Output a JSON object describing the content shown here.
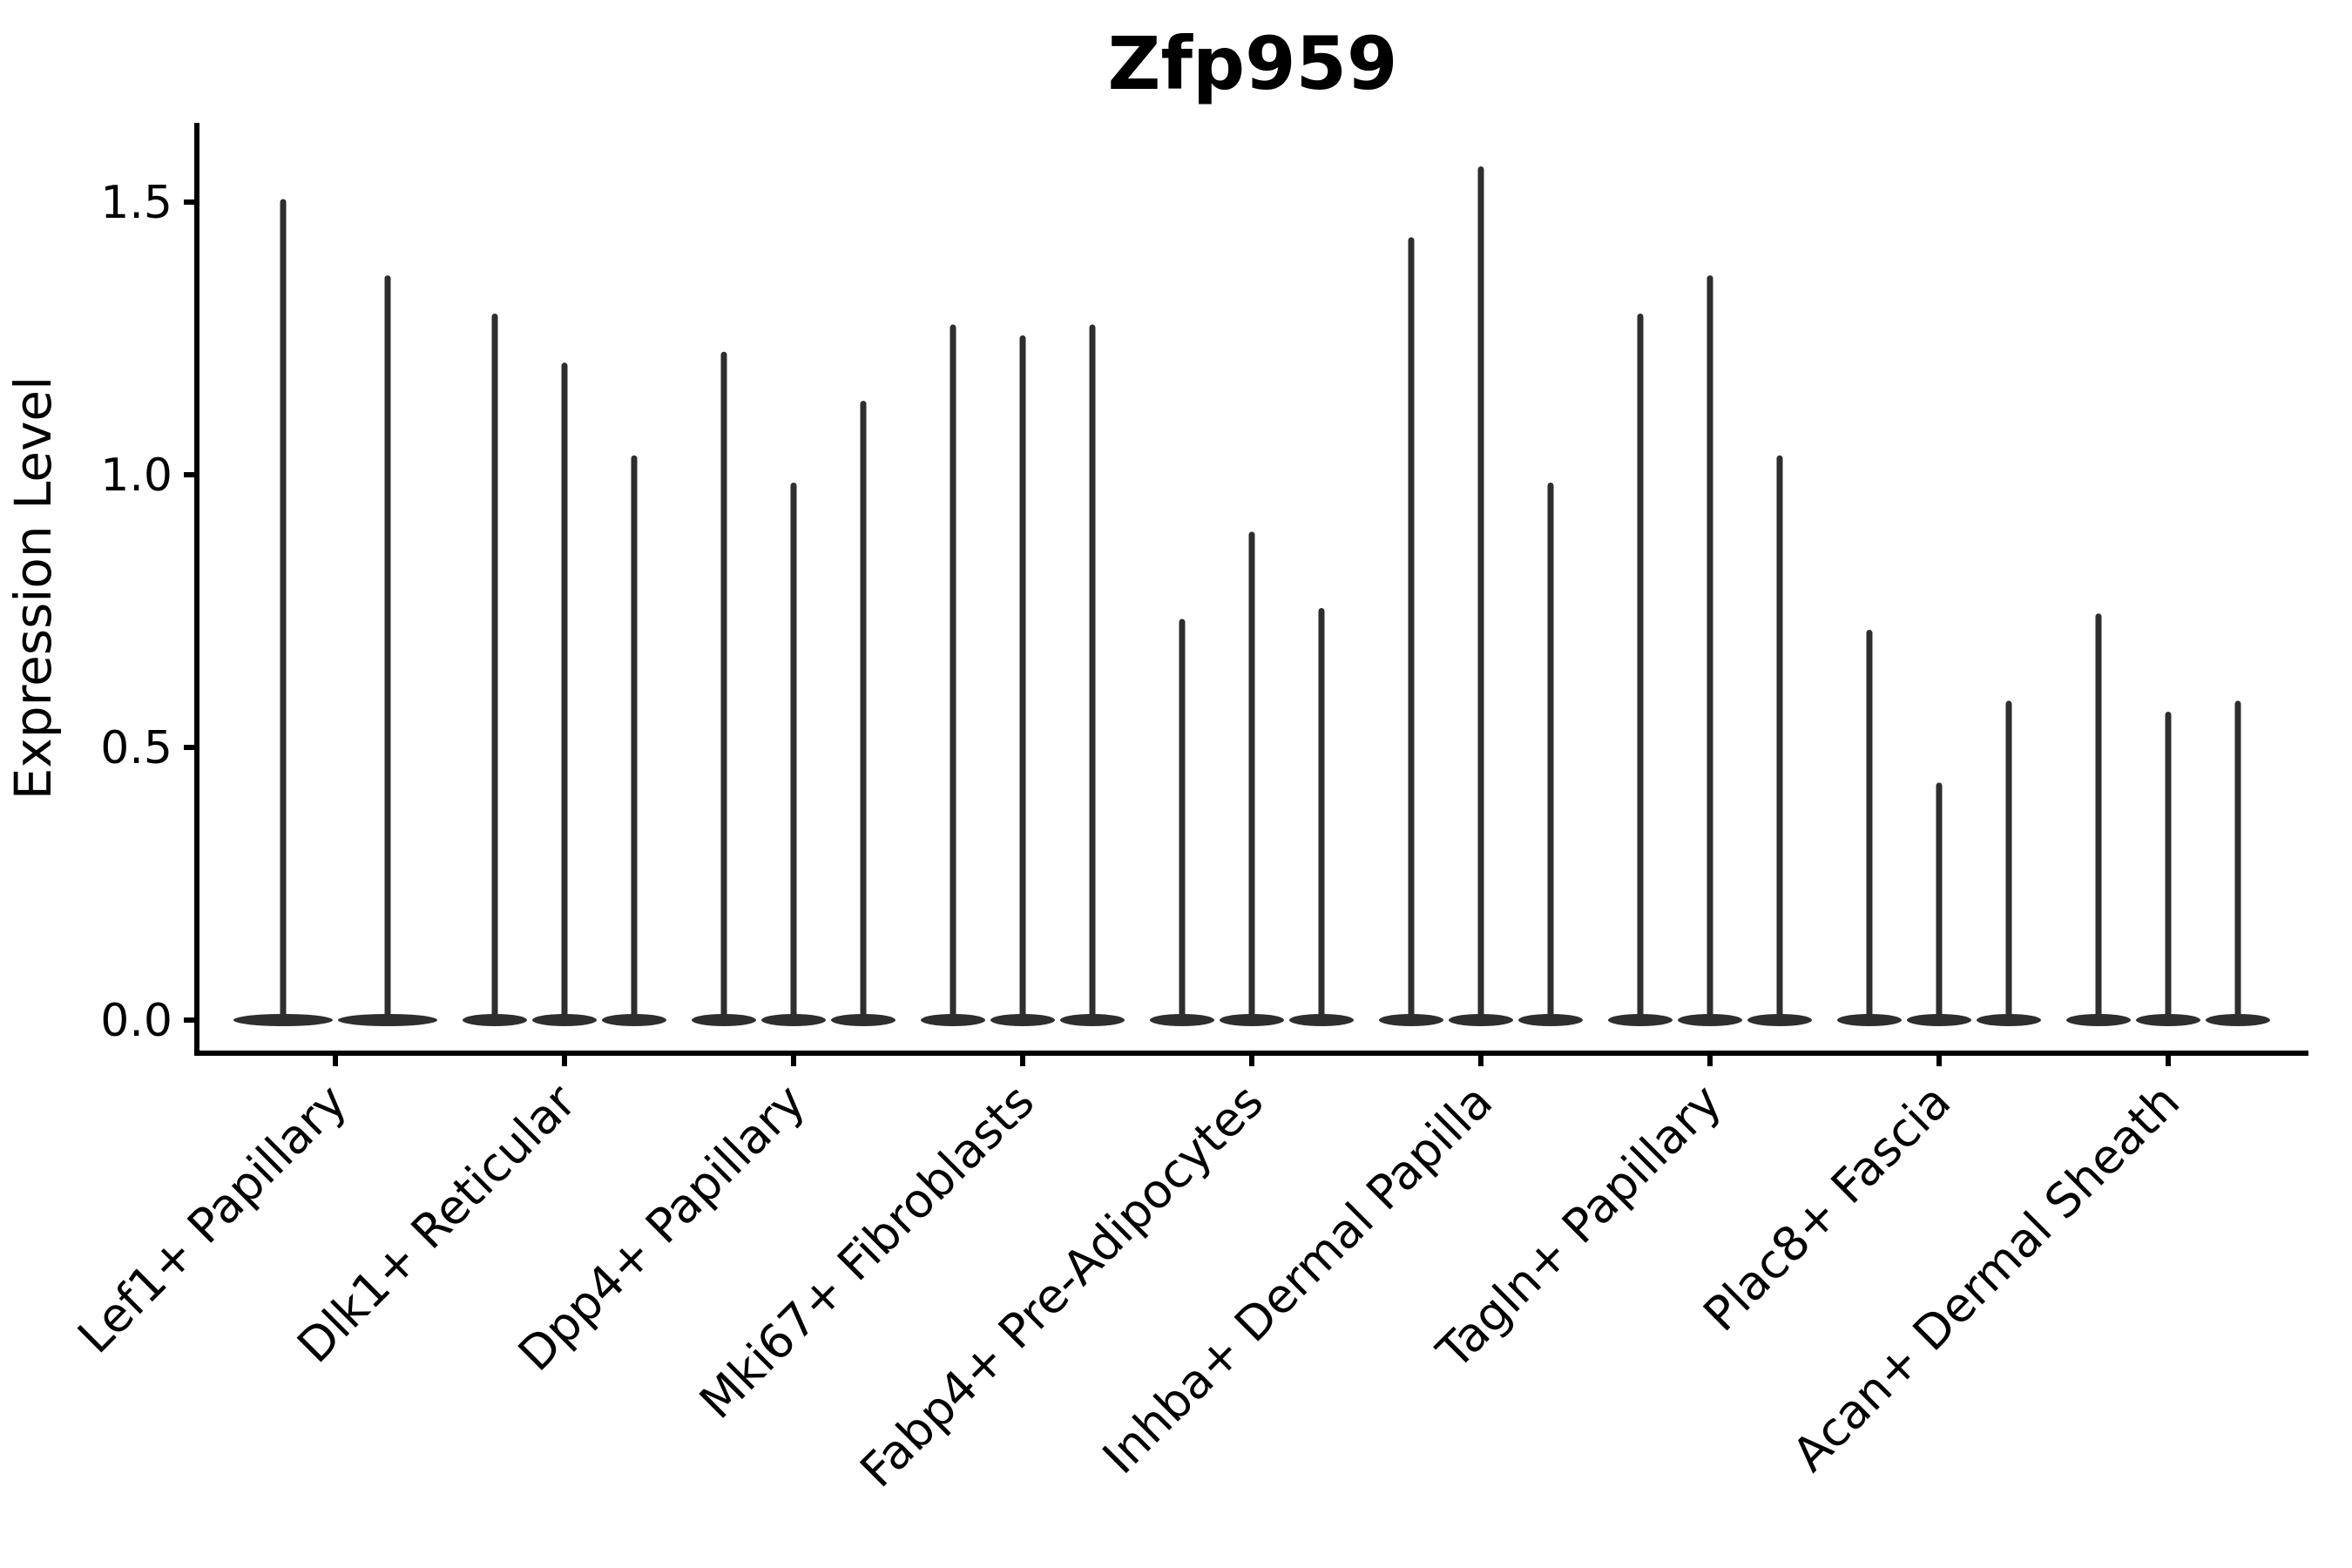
{
  "chart_data": {
    "type": "violin",
    "title": "Zfp959",
    "xlabel": "",
    "ylabel": "Expression Level",
    "categories": [
      "Lef1+ Papillary",
      "Dlk1+ Reticular",
      "Dpp4+ Papillary",
      "Mki67+ Fibroblasts",
      "Fabp4+ Pre-Adipocytes",
      "Inhba+ Dermal Papilla",
      "Tagln+ Papillary",
      "Plac8+ Fascia",
      "Acan+ Dermal Sheath"
    ],
    "series_description": "Each category shows narrow spike-shaped violins (most cells at 0 expression, thin tail up to the max). Values are the top of each spike per violin, left to right within the category.",
    "violin_max_values": [
      [
        1.5,
        1.36
      ],
      [
        1.29,
        1.2,
        1.03
      ],
      [
        1.22,
        0.98,
        1.13
      ],
      [
        1.27,
        1.25,
        1.27
      ],
      [
        0.73,
        0.89,
        0.75
      ],
      [
        1.43,
        1.56,
        0.98
      ],
      [
        1.29,
        1.36,
        1.03
      ],
      [
        0.71,
        0.43,
        0.58
      ],
      [
        0.74,
        0.56,
        0.58
      ]
    ],
    "y_tick_labels": [
      "0.0",
      "0.5",
      "1.0",
      "1.5"
    ],
    "y_tick_values": [
      0.0,
      0.5,
      1.0,
      1.5
    ],
    "ylim": [
      -0.06,
      1.65
    ],
    "x_tick_rotation_deg": 45,
    "grid": "off",
    "legend": "none",
    "violin_color": "#2e2e2e",
    "axis_color": "#000000",
    "background_color": "#ffffff"
  }
}
